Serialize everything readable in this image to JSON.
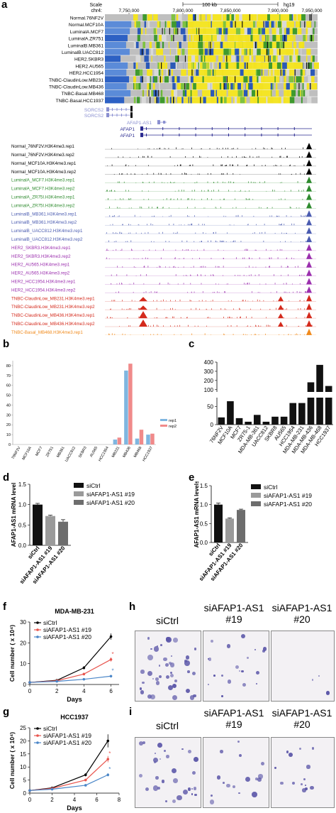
{
  "panels": {
    "a": "a",
    "b": "b",
    "c": "c",
    "d": "d",
    "e": "e",
    "f": "f",
    "g": "g",
    "h": "h",
    "i": "i"
  },
  "browser": {
    "scale_label": "Scale",
    "chrom_label": "chr4:",
    "scale_value": "100 kb",
    "assembly": "hg19",
    "positions": [
      "7,750,000",
      "7,800,000",
      "7,850,000",
      "7,900,000",
      "7,950,000"
    ],
    "methylation_tracks": [
      "Normal.76NF2V",
      "Normal.MCF10A",
      "LuminalA.MCF7",
      "LuminalA.ZR751",
      "LuminalB.MB361",
      "LuminalB.UACC812",
      "HER2.SKBR3",
      "HER2.AU565",
      "HER2.HCC1954",
      "TNBC-ClaudinLow.MB231",
      "TNBC-ClaudinLow.MB436",
      "TNBC-Basal.MB468",
      "TNBC-Basal.HCC1937"
    ],
    "genes": [
      "SORCS2",
      "SORCS2",
      "AFAP1-AS1",
      "AFAP1",
      "AFAP1"
    ],
    "h3k4_tracks": [
      {
        "label": "Normal_76NF2V.H3K4me3.rep1",
        "color": "#000000"
      },
      {
        "label": "Normal_76NF2V.H3K4me3.rep2",
        "color": "#000000"
      },
      {
        "label": "Normal_MCF10A.H3K4me3.rep1",
        "color": "#000000"
      },
      {
        "label": "Normal_MCF10A.H3K4me3.rep2",
        "color": "#000000"
      },
      {
        "label": "LuminalA_MCF7.H3K4me3.rep1",
        "color": "#2e8b2e"
      },
      {
        "label": "LuminalA_MCF7.H3K4me3.rep2",
        "color": "#2e8b2e"
      },
      {
        "label": "LuminalA_ZR75I.H3K4me3.rep1",
        "color": "#2e8b2e"
      },
      {
        "label": "LuminalA_ZR75I.H3K4me3.rep2",
        "color": "#2e8b2e"
      },
      {
        "label": "LuminalB_MB361.H3K4me3.rep1",
        "color": "#4a5bb0"
      },
      {
        "label": "LuminalB_MB361.H3K4me3.rep2",
        "color": "#4a5bb0"
      },
      {
        "label": "LuminalB_UACC812.H3K4me3.rep1",
        "color": "#4a5bb0"
      },
      {
        "label": "LuminalB_UACC812.H3K4me3.rep2",
        "color": "#4a5bb0"
      },
      {
        "label": "HER2_SKBR3.H3K4me3.rep1",
        "color": "#9b2fae"
      },
      {
        "label": "HER2_SKBR3.H3K4me3.rep2",
        "color": "#9b2fae"
      },
      {
        "label": "HER2_AU565.H3K4me3.rep1",
        "color": "#9b2fae"
      },
      {
        "label": "HER2_AU565.H3K4me3.rep2",
        "color": "#9b2fae"
      },
      {
        "label": "HER2_HCC1954.H3K4me3.rep1",
        "color": "#9b2fae"
      },
      {
        "label": "HER2_HCC1954.H3K4me3.rep2",
        "color": "#9b2fae"
      },
      {
        "label": "TNBC-ClaudinLow_MB231.H3K4me3.rep1",
        "color": "#d42a1c"
      },
      {
        "label": "TNBC-ClaudinLow_MB231.H3K4me3.rep2",
        "color": "#d42a1c"
      },
      {
        "label": "TNBC-ClaudinLow_MB436.H3K4me3.rep1",
        "color": "#d42a1c"
      },
      {
        "label": "TNBC-ClaudinLow_MB436.H3K4me3.rep2",
        "color": "#d42a1c"
      },
      {
        "label": "TNBC-Basal_MB468.H3K4me3.rep1",
        "color": "#f08a1c"
      },
      {
        "label": "TNBC-Basal_MB468.H3K4me3.rep2",
        "color": "#f08a1c"
      },
      {
        "label": "TNBC-Basal_HCC1937.H3K4me3.rep1",
        "color": "#f08a1c"
      },
      {
        "label": "TNBC-Basal_HCC1937.H3K4me3.rep2",
        "color": "#f08a1c"
      }
    ]
  },
  "chart_data": [
    {
      "panel": "b",
      "type": "bar",
      "categories": [
        "76NF2V",
        "MCF10A",
        "MCF7",
        "ZR751",
        "MB361",
        "UACC812",
        "SKBR3",
        "AU565",
        "HCC1954",
        "MB231",
        "MB436",
        "MB468",
        "HCC1937"
      ],
      "series": [
        {
          "name": "rep1",
          "color": "#7fb6e0",
          "values": [
            0,
            0,
            0,
            0,
            0,
            0,
            0,
            0,
            0,
            5,
            75,
            6,
            10
          ]
        },
        {
          "name": "rep2",
          "color": "#f08a8a",
          "values": [
            0,
            0,
            0,
            0,
            0,
            0,
            0,
            0,
            0,
            7,
            82,
            15,
            11
          ]
        }
      ],
      "yticks": [
        "0",
        "10",
        "20",
        "30",
        "40",
        "50",
        "60",
        "70",
        "80"
      ],
      "ylim": [
        0,
        85
      ],
      "legend": "right"
    },
    {
      "panel": "c",
      "type": "bar",
      "categories": [
        "76NF2V",
        "MCF10A",
        "MCF7",
        "ZR75-1",
        "MDA-MB-361",
        "UACC812",
        "SKBR8",
        "AU565",
        "HCC1954",
        "MDA-MB-231",
        "MDA-MB-436",
        "MDA-MB-468",
        "HCC1937"
      ],
      "values": [
        20,
        65,
        18,
        8,
        27,
        8,
        22,
        22,
        60,
        60,
        180,
        370,
        140
      ],
      "color": "#111111",
      "yticks": [
        "0",
        "50",
        "100",
        "200",
        "300",
        "400"
      ],
      "broken_axis": true
    },
    {
      "panel": "d",
      "type": "bar",
      "categories": [
        "siCtrl",
        "siAFAP1-AS1 #19",
        "siAFAP1-AS1 #20"
      ],
      "values": [
        1.0,
        0.72,
        0.58
      ],
      "errors": [
        0.03,
        0.02,
        0.05
      ],
      "colors": [
        "#111111",
        "#9a9a9a",
        "#6d6d6d"
      ],
      "ylabel": "AFAP1-AS1 mRNA level",
      "yticks": [
        "0.0",
        "0.5",
        "1.0",
        "1.5"
      ],
      "ylim": [
        0,
        1.5
      ],
      "legend": [
        "siCtrl",
        "siAFAP1-AS1 #19",
        "siAFAP1-AS1 #20"
      ]
    },
    {
      "panel": "e",
      "type": "bar",
      "categories": [
        "siCtrl",
        "siAFAP1-AS1 #19",
        "siAFAP1-AS1 #20"
      ],
      "values": [
        1.0,
        0.63,
        0.86
      ],
      "errors": [
        0.04,
        0.02,
        0.02
      ],
      "colors": [
        "#111111",
        "#9a9a9a",
        "#6d6d6d"
      ],
      "ylabel": "AFAP1-AS1 mRNA levels",
      "yticks": [
        "0.0",
        "0.5",
        "1.0",
        "1.5"
      ],
      "ylim": [
        0,
        1.5
      ],
      "legend": [
        "siCtrl",
        "siAFAP1-AS1 #19",
        "siAFAP1-AS1 #20"
      ]
    },
    {
      "panel": "f",
      "type": "line",
      "title": "MDA-MB-231",
      "xlabel": "Days",
      "ylabel": "Cell number ( x 10⁴)",
      "x": [
        0,
        2,
        4,
        6
      ],
      "series": [
        {
          "name": "siCtrl",
          "color": "#000000",
          "values": [
            1,
            2,
            8,
            23
          ],
          "errors": [
            0.2,
            0.3,
            0.8,
            1.5
          ]
        },
        {
          "name": "siAFAP1-AS1 #19",
          "color": "#e8554e",
          "values": [
            1,
            1.8,
            5,
            12
          ],
          "errors": [
            0.2,
            0.3,
            0.5,
            1
          ]
        },
        {
          "name": "siAFAP1-AS1 #20",
          "color": "#4a86c8",
          "values": [
            1,
            1.5,
            2.5,
            4
          ],
          "errors": [
            0.1,
            0.2,
            0.3,
            0.4
          ]
        }
      ],
      "yticks": [
        "0",
        "10",
        "20",
        "30"
      ],
      "xticks": [
        "0",
        "2",
        "4",
        "6"
      ],
      "ylim": [
        0,
        30
      ],
      "xlim": [
        0,
        6.6
      ],
      "annotations": [
        "*",
        "*"
      ]
    },
    {
      "panel": "g",
      "type": "line",
      "title": "HCC1937",
      "xlabel": "Days",
      "ylabel": "Cell number ( x 10⁴)",
      "x": [
        0,
        2,
        5,
        7
      ],
      "series": [
        {
          "name": "siCtrl",
          "color": "#000000",
          "values": [
            1,
            2,
            7,
            20
          ],
          "errors": [
            0.2,
            0.3,
            0.6,
            2.5
          ]
        },
        {
          "name": "siAFAP1-AS1 #19",
          "color": "#e8554e",
          "values": [
            1,
            1.8,
            5,
            13
          ],
          "errors": [
            0.2,
            0.3,
            0.5,
            1.2
          ]
        },
        {
          "name": "siAFAP1-AS1 #20",
          "color": "#4a86c8",
          "values": [
            1,
            1.5,
            3,
            7
          ],
          "errors": [
            0.1,
            0.2,
            0.3,
            0.6
          ]
        }
      ],
      "yticks": [
        "0",
        "5",
        "10",
        "15",
        "20",
        "25"
      ],
      "xticks": [
        "0",
        "2",
        "4",
        "6",
        "8"
      ],
      "ylim": [
        0,
        25
      ],
      "xlim": [
        0,
        8
      ],
      "annotations": [
        "*",
        "*"
      ]
    }
  ],
  "colony_h": {
    "titles": [
      "siCtrl",
      "siAFAP1-AS1\n#19",
      "siAFAP1-AS1\n#20"
    ]
  },
  "colony_i": {
    "titles": [
      "siCtrl",
      "siAFAP1-AS1\n#19",
      "siAFAP1-AS1\n#20"
    ]
  }
}
